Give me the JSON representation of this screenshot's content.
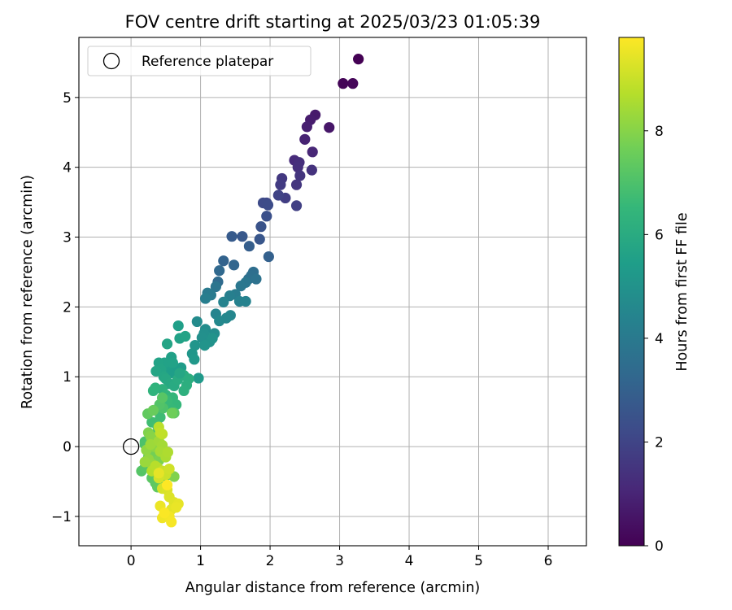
{
  "chart_data": {
    "type": "scatter",
    "title": "FOV centre drift starting at 2025/03/23 01:05:39",
    "xlabel": "Angular distance from reference (arcmin)",
    "ylabel": "Rotation from reference (arcmin)",
    "xlim": [
      -0.75,
      6.55
    ],
    "ylim": [
      -1.42,
      5.86
    ],
    "x_ticks": [
      0,
      1,
      2,
      3,
      4,
      5,
      6
    ],
    "y_ticks": [
      -1,
      0,
      1,
      2,
      3,
      4,
      5
    ],
    "grid": true,
    "legend": {
      "placement": "upper-left",
      "entries": [
        {
          "label": "Reference platepar",
          "marker": "open-circle"
        }
      ]
    },
    "reference_point": {
      "x": 0,
      "y": 0,
      "color": "#000000",
      "fill": "none"
    },
    "colorbar": {
      "label": "Hours from first FF file",
      "colormap": "viridis",
      "range": [
        0,
        9.8
      ],
      "ticks": [
        0,
        2,
        4,
        6,
        8
      ],
      "stops": [
        "#440154",
        "#482878",
        "#3e4a89",
        "#31688e",
        "#26828e",
        "#1f9e89",
        "#35b779",
        "#6ece58",
        "#b5de2b",
        "#fde725"
      ]
    },
    "series": [
      {
        "marker": "filled-circle",
        "color_by": "hours",
        "points": [
          [
            3.27,
            5.55,
            0.0
          ],
          [
            3.05,
            5.2,
            0.1
          ],
          [
            3.19,
            5.2,
            0.15
          ],
          [
            2.85,
            4.57,
            0.6
          ],
          [
            2.65,
            4.75,
            0.7
          ],
          [
            2.58,
            4.68,
            0.75
          ],
          [
            2.53,
            4.58,
            0.85
          ],
          [
            2.5,
            4.4,
            0.95
          ],
          [
            2.61,
            4.22,
            1.05
          ],
          [
            2.35,
            4.1,
            1.2
          ],
          [
            2.42,
            4.07,
            1.3
          ],
          [
            2.4,
            4.0,
            1.35
          ],
          [
            2.6,
            3.96,
            1.4
          ],
          [
            2.43,
            3.88,
            1.5
          ],
          [
            2.38,
            3.75,
            1.55
          ],
          [
            2.17,
            3.84,
            1.6
          ],
          [
            2.15,
            3.75,
            1.7
          ],
          [
            2.22,
            3.56,
            1.8
          ],
          [
            2.38,
            3.45,
            1.85
          ],
          [
            2.12,
            3.6,
            1.95
          ],
          [
            1.95,
            3.49,
            2.1
          ],
          [
            1.9,
            3.49,
            2.2
          ],
          [
            1.97,
            3.46,
            2.25
          ],
          [
            1.95,
            3.3,
            2.4
          ],
          [
            1.87,
            3.15,
            2.5
          ],
          [
            1.85,
            2.97,
            2.6
          ],
          [
            1.6,
            3.01,
            2.7
          ],
          [
            1.45,
            3.01,
            2.8
          ],
          [
            1.7,
            2.87,
            2.9
          ],
          [
            1.98,
            2.72,
            3.0
          ],
          [
            1.33,
            2.66,
            3.1
          ],
          [
            1.48,
            2.6,
            3.2
          ],
          [
            1.27,
            2.52,
            3.3
          ],
          [
            1.25,
            2.36,
            3.4
          ],
          [
            1.76,
            2.5,
            3.5
          ],
          [
            1.73,
            2.45,
            3.55
          ],
          [
            1.69,
            2.4,
            3.6
          ],
          [
            1.8,
            2.4,
            3.7
          ],
          [
            1.22,
            2.29,
            3.8
          ],
          [
            1.65,
            2.35,
            3.85
          ],
          [
            1.58,
            2.3,
            3.9
          ],
          [
            1.1,
            2.2,
            4.0
          ],
          [
            1.15,
            2.17,
            4.05
          ],
          [
            1.5,
            2.18,
            4.1
          ],
          [
            1.07,
            2.12,
            4.2
          ],
          [
            1.42,
            2.16,
            4.25
          ],
          [
            1.56,
            2.08,
            4.3
          ],
          [
            1.65,
            2.08,
            4.35
          ],
          [
            1.33,
            2.07,
            4.4
          ],
          [
            1.22,
            1.9,
            4.45
          ],
          [
            1.43,
            1.88,
            4.5
          ],
          [
            1.37,
            1.84,
            4.55
          ],
          [
            1.27,
            1.8,
            4.6
          ],
          [
            0.95,
            1.79,
            4.7
          ],
          [
            1.07,
            1.68,
            4.75
          ],
          [
            1.2,
            1.62,
            4.8
          ],
          [
            1.05,
            1.62,
            4.85
          ],
          [
            1.02,
            1.56,
            4.9
          ],
          [
            1.13,
            1.5,
            4.95
          ],
          [
            1.17,
            1.55,
            5.0
          ],
          [
            1.06,
            1.45,
            5.05
          ],
          [
            0.92,
            1.45,
            5.1
          ],
          [
            0.88,
            1.33,
            5.15
          ],
          [
            0.91,
            1.25,
            5.2
          ],
          [
            0.97,
            0.98,
            5.3
          ],
          [
            0.72,
            1.13,
            5.35
          ],
          [
            0.65,
            1.1,
            5.4
          ],
          [
            0.56,
            1.05,
            5.45
          ],
          [
            0.52,
            1.17,
            5.5
          ],
          [
            0.58,
            1.28,
            5.55
          ],
          [
            0.48,
            1.2,
            5.6
          ],
          [
            0.4,
            1.2,
            5.65
          ],
          [
            0.43,
            1.1,
            5.7
          ],
          [
            0.36,
            1.08,
            5.75
          ],
          [
            0.47,
            1.0,
            5.8
          ],
          [
            0.5,
            0.97,
            5.85
          ],
          [
            0.55,
            0.9,
            5.9
          ],
          [
            0.62,
            0.87,
            5.95
          ],
          [
            0.67,
            0.96,
            6.0
          ],
          [
            0.76,
            1.02,
            6.05
          ],
          [
            0.83,
            0.97,
            6.1
          ],
          [
            0.8,
            0.88,
            6.15
          ],
          [
            0.76,
            0.8,
            6.2
          ],
          [
            0.45,
            0.82,
            6.25
          ],
          [
            0.35,
            0.84,
            6.3
          ],
          [
            0.32,
            0.8,
            6.35
          ],
          [
            0.5,
            0.74,
            6.4
          ],
          [
            0.6,
            0.7,
            6.45
          ],
          [
            0.65,
            0.6,
            6.5
          ],
          [
            0.57,
            0.55,
            6.55
          ],
          [
            0.52,
            0.66,
            6.6
          ],
          [
            0.4,
            0.5,
            6.65
          ],
          [
            0.42,
            0.42,
            6.7
          ],
          [
            0.3,
            0.35,
            6.75
          ],
          [
            0.38,
            0.3,
            6.8
          ],
          [
            0.35,
            0.18,
            6.85
          ],
          [
            0.28,
            0.1,
            6.9
          ],
          [
            0.2,
            0.07,
            6.95
          ],
          [
            0.2,
            0.03,
            7.0
          ],
          [
            0.3,
            -0.1,
            7.05
          ],
          [
            0.25,
            -0.15,
            7.1
          ],
          [
            0.15,
            -0.35,
            7.15
          ],
          [
            0.2,
            -0.3,
            7.2
          ],
          [
            0.3,
            -0.45,
            7.25
          ],
          [
            0.35,
            -0.52,
            7.3
          ],
          [
            0.38,
            -0.58,
            7.35
          ],
          [
            0.45,
            -0.5,
            7.4
          ],
          [
            0.5,
            -0.42,
            7.45
          ],
          [
            0.46,
            0.55,
            7.0
          ],
          [
            0.41,
            0.6,
            7.1
          ],
          [
            0.7,
            1.55,
            5.6
          ],
          [
            0.68,
            1.73,
            5.5
          ],
          [
            0.52,
            1.47,
            5.7
          ],
          [
            0.78,
            1.58,
            5.65
          ],
          [
            0.6,
            1.2,
            5.6
          ],
          [
            0.7,
            1.05,
            5.8
          ],
          [
            0.62,
            0.48,
            7.3
          ],
          [
            0.59,
            0.48,
            7.6
          ],
          [
            0.62,
            -0.43,
            7.9
          ],
          [
            0.45,
            0.7,
            7.2
          ],
          [
            0.24,
            0.47,
            7.4
          ],
          [
            0.32,
            0.52,
            7.5
          ],
          [
            0.35,
            -0.1,
            7.7
          ],
          [
            0.4,
            -0.2,
            7.8
          ],
          [
            0.25,
            0.2,
            7.9
          ],
          [
            0.28,
            0.15,
            8.0
          ],
          [
            0.3,
            0.1,
            8.05
          ],
          [
            0.33,
            0.0,
            8.1
          ],
          [
            0.22,
            -0.05,
            8.15
          ],
          [
            0.25,
            -0.18,
            8.2
          ],
          [
            0.3,
            -0.25,
            8.25
          ],
          [
            0.2,
            -0.22,
            8.3
          ],
          [
            0.28,
            0.03,
            8.35
          ],
          [
            0.4,
            0.08,
            8.4
          ],
          [
            0.45,
            0.02,
            8.45
          ],
          [
            0.42,
            -0.07,
            8.5
          ],
          [
            0.5,
            -0.15,
            8.55
          ],
          [
            0.53,
            -0.08,
            8.6
          ],
          [
            0.38,
            -0.3,
            8.65
          ],
          [
            0.3,
            -0.35,
            8.7
          ],
          [
            0.35,
            -0.28,
            8.75
          ],
          [
            0.4,
            0.28,
            8.8
          ],
          [
            0.45,
            0.18,
            8.85
          ],
          [
            0.42,
            0.2,
            8.9
          ],
          [
            0.45,
            -0.35,
            9.0
          ],
          [
            0.5,
            -0.4,
            9.05
          ],
          [
            0.55,
            -0.32,
            9.1
          ],
          [
            0.4,
            -0.45,
            9.15
          ],
          [
            0.45,
            -0.6,
            9.2
          ],
          [
            0.52,
            -0.62,
            9.25
          ],
          [
            0.55,
            -0.72,
            9.3
          ],
          [
            0.62,
            -0.8,
            9.35
          ],
          [
            0.58,
            -0.9,
            9.4
          ],
          [
            0.68,
            -0.82,
            9.45
          ],
          [
            0.65,
            -0.87,
            9.5
          ],
          [
            0.42,
            -0.85,
            9.55
          ],
          [
            0.45,
            -1.02,
            9.6
          ],
          [
            0.55,
            -1.0,
            9.65
          ],
          [
            0.58,
            -1.08,
            9.7
          ],
          [
            0.48,
            -0.95,
            9.75
          ],
          [
            0.52,
            -0.55,
            9.8
          ],
          [
            0.4,
            -0.38,
            9.45
          ]
        ]
      }
    ]
  }
}
